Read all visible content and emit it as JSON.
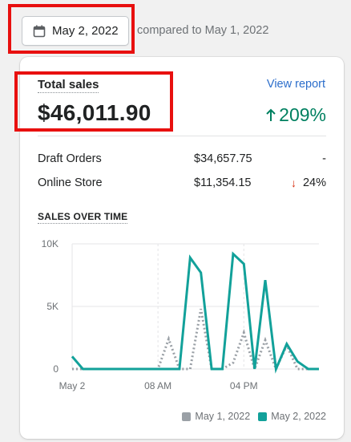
{
  "date_picker": {
    "selected_date": "May 2, 2022",
    "comparison_text": "compared to May 1, 2022",
    "icon": "calendar-icon"
  },
  "card": {
    "title": "Total sales",
    "total_value": "$46,011.90",
    "view_report_label": "View report",
    "change_percent": "209%",
    "change_direction": "up",
    "breakdown": [
      {
        "name": "Draft Orders",
        "amount": "$34,657.75",
        "change": "-",
        "direction": "none"
      },
      {
        "name": "Online Store",
        "amount": "$11,354.15",
        "change": "24%",
        "direction": "down"
      }
    ],
    "sales_over_time_label": "SALES OVER TIME"
  },
  "colors": {
    "accent_green": "#008060",
    "decline_red": "#d72c0d",
    "link_blue": "#2c6ecb",
    "series_current": "#12a19a",
    "series_previous": "#9aa0a6",
    "highlight_red": "#e8100f"
  },
  "chart_data": {
    "type": "line",
    "x_labels": [
      "May 2",
      "08 AM",
      "04 PM"
    ],
    "x_hours": [
      0,
      8,
      16
    ],
    "y_ticks": [
      "0",
      "5K",
      "10K"
    ],
    "y_tick_values": [
      0,
      5000,
      10000
    ],
    "ylim": [
      0,
      10000
    ],
    "xlim": [
      0,
      23
    ],
    "series": [
      {
        "name": "May 1, 2022",
        "style": "dotted",
        "color": "#9aa0a6",
        "x": [
          0,
          1,
          2,
          3,
          4,
          5,
          6,
          7,
          8,
          9,
          10,
          11,
          12,
          13,
          14,
          15,
          16,
          17,
          18,
          19,
          20,
          21,
          22,
          23
        ],
        "values": [
          0,
          0,
          0,
          0,
          0,
          0,
          0,
          0,
          0,
          2400,
          0,
          0,
          4800,
          0,
          0,
          500,
          2900,
          0,
          2300,
          0,
          1900,
          0,
          0,
          0
        ]
      },
      {
        "name": "May 2, 2022",
        "style": "solid",
        "color": "#12a19a",
        "x": [
          0,
          1,
          2,
          3,
          4,
          5,
          6,
          7,
          8,
          9,
          10,
          11,
          12,
          13,
          14,
          15,
          16,
          17,
          18,
          19,
          20,
          21,
          22,
          23
        ],
        "values": [
          1000,
          0,
          0,
          0,
          0,
          0,
          0,
          0,
          0,
          0,
          0,
          8900,
          7700,
          0,
          0,
          9200,
          8400,
          0,
          7100,
          0,
          2000,
          600,
          0,
          0
        ]
      }
    ],
    "legend": [
      "May 1, 2022",
      "May 2, 2022"
    ],
    "legend_position": "bottom-right",
    "grid": true
  }
}
